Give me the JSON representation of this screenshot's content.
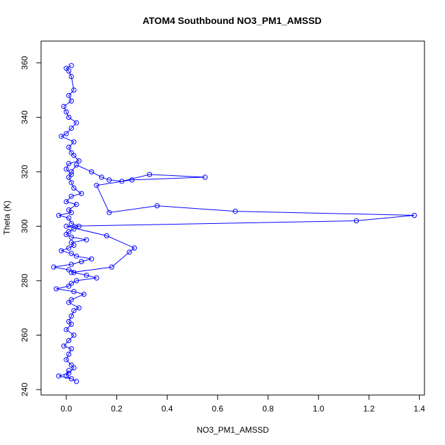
{
  "chart_data": {
    "type": "scatter",
    "title": "ATOM4 Southbound NO3_PM1_AMSSD",
    "xlabel": "NO3_PM1_AMSSD",
    "ylabel": "Theta (K)",
    "xlim": [
      -0.1,
      1.42
    ],
    "ylim": [
      238,
      368
    ],
    "x_ticks": [
      "0.0",
      "0.2",
      "0.4",
      "0.6",
      "0.8",
      "1.0",
      "1.2",
      "1.4"
    ],
    "y_ticks": [
      "240",
      "260",
      "280",
      "300",
      "320",
      "340",
      "360"
    ],
    "grid": false,
    "legend": "none",
    "series_color": "#0000ff",
    "marker": "open-circle",
    "connected_by_line": true,
    "highlight_points": {
      "x": [
        0.02,
        0.04,
        0.1,
        0.14,
        0.17,
        0.22,
        0.33,
        0.55,
        0.26,
        0.12,
        0.17,
        0.36,
        0.67,
        1.38,
        1.15,
        0.0,
        0.16,
        0.27,
        0.25,
        0.18,
        0.02
      ],
      "y": [
        320,
        322.5,
        320,
        318,
        317,
        316.5,
        319,
        318,
        317,
        315,
        305,
        307.5,
        305.5,
        304,
        302,
        300,
        296.5,
        292,
        290.5,
        285,
        283
      ]
    },
    "scatter_points": {
      "x": [
        0.02,
        0.0,
        0.01,
        0.02,
        0.03,
        0.01,
        0.02,
        -0.01,
        0.0,
        0.01,
        0.04,
        0.02,
        0.0,
        -0.02,
        0.03,
        0.01,
        0.02,
        0.03,
        0.05,
        0.01,
        0.0,
        0.02,
        0.01,
        0.02,
        0.03,
        0.06,
        0.02,
        0.0,
        0.04,
        0.01,
        0.02,
        -0.03,
        0.01,
        0.02,
        0.05,
        0.03,
        0.01,
        0.0,
        0.02,
        0.08,
        0.02,
        0.03,
        0.01,
        -0.02,
        0.02,
        0.04,
        0.1,
        0.06,
        0.02,
        -0.05,
        0.01,
        0.03,
        0.08,
        0.12,
        0.04,
        0.02,
        0.01,
        -0.04,
        0.03,
        0.07,
        0.02,
        0.01,
        0.05,
        0.03,
        0.02,
        0.01,
        0.02,
        0.0,
        0.03,
        0.01,
        -0.01,
        0.02,
        0.01,
        0.0,
        0.02,
        0.03,
        0.01,
        -0.03,
        0.02,
        0.04,
        0.0,
        0.01
      ],
      "y": [
        359,
        358,
        357,
        355,
        350,
        348,
        346,
        344,
        342,
        340,
        338,
        336,
        334,
        333,
        331,
        329,
        327,
        326,
        324,
        323,
        321,
        319,
        318,
        316,
        314,
        312,
        311,
        309,
        308,
        306,
        305,
        304,
        303,
        301,
        300,
        299,
        298,
        297,
        296,
        295,
        294,
        293,
        292,
        291,
        290,
        289,
        288,
        287,
        286,
        285,
        284,
        283,
        282,
        281,
        280,
        279,
        278,
        277,
        276,
        275,
        273,
        272,
        270,
        269,
        267,
        265,
        264,
        262,
        260,
        258,
        256,
        255,
        253,
        251,
        249,
        248,
        246,
        245,
        244,
        243,
        245,
        247
      ]
    }
  }
}
